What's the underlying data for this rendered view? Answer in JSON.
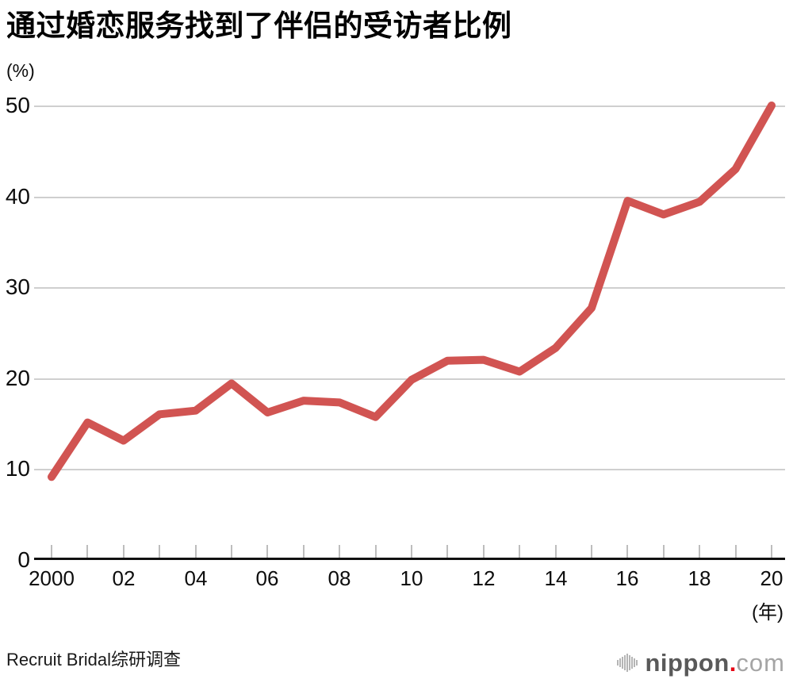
{
  "title": "通过婚恋服务找到了伴侣的受访者比例",
  "y_unit_label": "(%)",
  "x_unit_label": "(年)",
  "source": "Recruit Bridal综研调查",
  "logo": {
    "nippon": "nippon",
    "dot": ".",
    "com": "com"
  },
  "colors": {
    "line": "#d15452",
    "grid": "#cfcfcf",
    "axis": "#111111",
    "tick": "#bdbdbd",
    "text": "#0d0d0d",
    "logo_dark": "#595959",
    "logo_light": "#a5a5a5",
    "logo_dot": "#e60012"
  },
  "chart_data": {
    "type": "line",
    "title": "通过婚恋服务找到了伴侣的受访者比例",
    "xlabel": "(年)",
    "ylabel": "(%)",
    "x": [
      2000,
      2001,
      2002,
      2003,
      2004,
      2005,
      2006,
      2007,
      2008,
      2009,
      2010,
      2011,
      2012,
      2013,
      2014,
      2015,
      2016,
      2017,
      2018,
      2019,
      2020
    ],
    "series": [
      {
        "name": "通过婚恋服务找到了伴侣的受访者比例",
        "values": [
          9.1,
          15.1,
          13.1,
          16.0,
          16.4,
          19.4,
          16.2,
          17.5,
          17.3,
          15.7,
          19.8,
          21.9,
          22.0,
          20.7,
          23.3,
          27.7,
          39.5,
          38.0,
          39.4,
          43.0,
          50.0
        ]
      }
    ],
    "ylim": [
      0,
      50
    ],
    "y_ticks": [
      0,
      10,
      20,
      30,
      40,
      50
    ],
    "x_tick_years": [
      2000,
      2001,
      2002,
      2003,
      2004,
      2005,
      2006,
      2007,
      2008,
      2009,
      2010,
      2011,
      2012,
      2013,
      2014,
      2015,
      2016,
      2017,
      2018,
      2019,
      2020
    ],
    "x_labels": [
      {
        "x": 2000,
        "label": "2000"
      },
      {
        "x": 2002,
        "label": "02"
      },
      {
        "x": 2004,
        "label": "04"
      },
      {
        "x": 2006,
        "label": "06"
      },
      {
        "x": 2008,
        "label": "08"
      },
      {
        "x": 2010,
        "label": "10"
      },
      {
        "x": 2012,
        "label": "12"
      },
      {
        "x": 2014,
        "label": "14"
      },
      {
        "x": 2016,
        "label": "16"
      },
      {
        "x": 2018,
        "label": "18"
      },
      {
        "x": 2020,
        "label": "20"
      }
    ],
    "grid": true,
    "legend": false
  }
}
